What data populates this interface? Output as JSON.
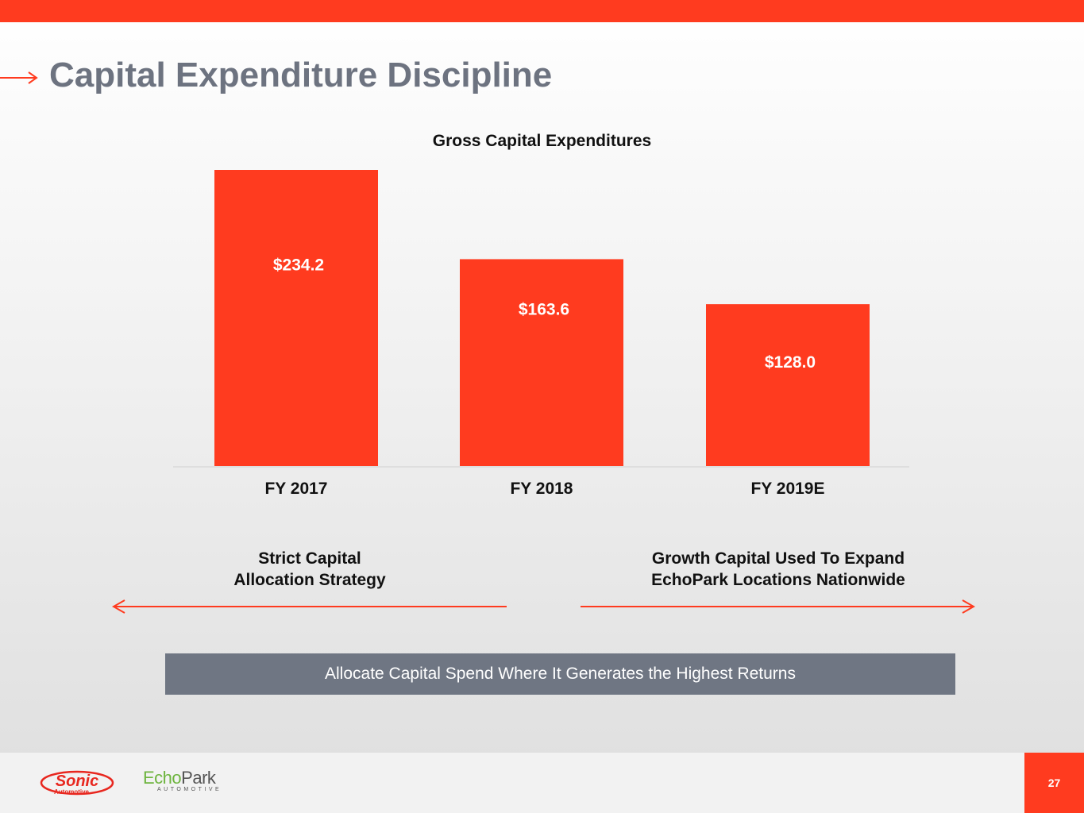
{
  "page": {
    "title": "Capital Expenditure Discipline",
    "page_number": "27",
    "accent_color": "#ff3b1f",
    "title_color": "#6d7380",
    "title_icon": "right-arrow-icon"
  },
  "callouts": {
    "left": [
      "Strict Capital",
      "Allocation Strategy"
    ],
    "right": [
      "Growth Capital Used To Expand",
      "EchoPark Locations Nationwide"
    ]
  },
  "banner": {
    "text": "Allocate Capital Spend Where It Generates the Highest Returns",
    "color": "#6f7683"
  },
  "footer": {
    "logos": {
      "sonic": {
        "wordmark": "Sonic",
        "sub": "Automotive"
      },
      "echopark": {
        "word1": "Echo",
        "word2": "Park",
        "sub": "AUTOMOTIVE"
      }
    }
  },
  "chart_data": {
    "type": "bar",
    "title": "Gross Capital Expenditures",
    "categories": [
      "FY 2017",
      "FY 2018",
      "FY 2019E"
    ],
    "values": [
      234.2,
      163.6,
      128.0
    ],
    "value_labels": [
      "$234.2",
      "$163.6",
      "$128.0"
    ],
    "bar_color": "#ff3b1f",
    "ylim": [
      0,
      234.2
    ],
    "grid": false,
    "legend": "none"
  }
}
